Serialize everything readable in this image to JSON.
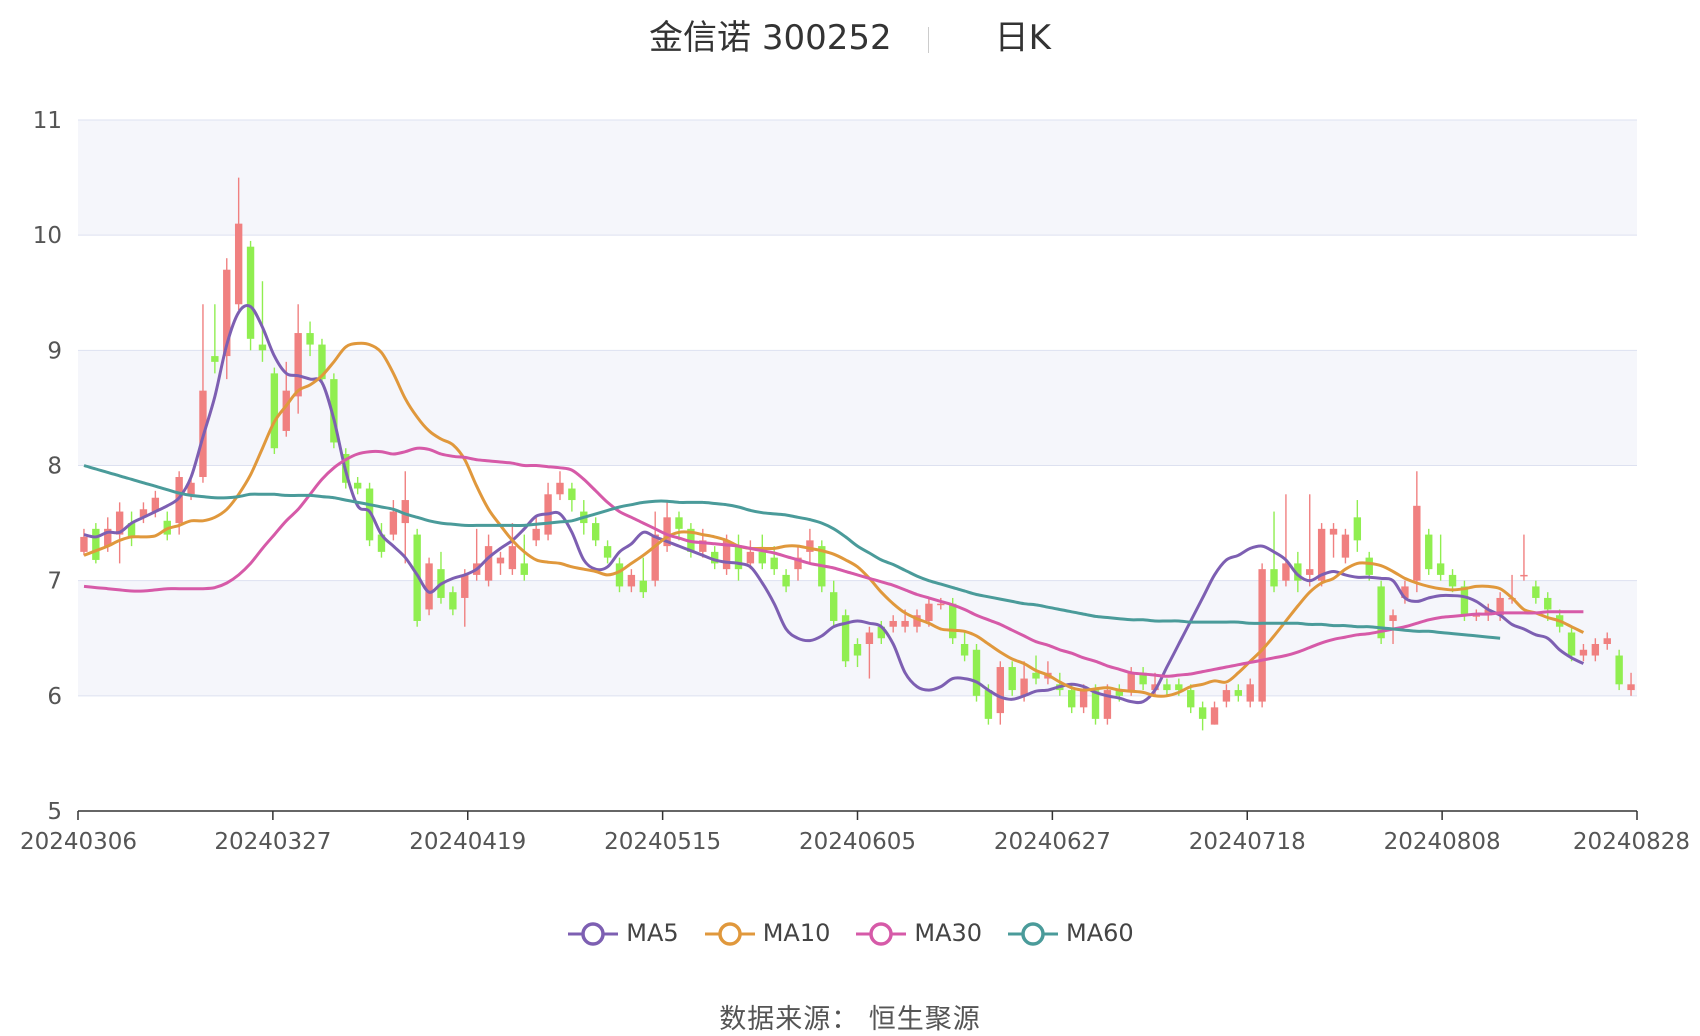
{
  "header": {
    "stock": "金信诺 300252",
    "period": "日K"
  },
  "footer": {
    "source": "数据来源： 恒生聚源"
  },
  "chart_data": {
    "type": "candlestick",
    "ylim": [
      5,
      11
    ],
    "yticks": [
      5,
      6,
      7,
      8,
      9,
      10,
      11
    ],
    "xtick_labels": [
      "20240306",
      "20240327",
      "20240419",
      "20240515",
      "20240605",
      "20240627",
      "20240718",
      "20240808",
      "20240828"
    ],
    "up_color": "#f08080",
    "down_color": "#90ee50",
    "background_bands": [
      "#f5f6fb",
      "#ffffff"
    ],
    "candles": [
      [
        7.25,
        7.38,
        7.22,
        7.45
      ],
      [
        7.45,
        7.18,
        7.15,
        7.5
      ],
      [
        7.3,
        7.45,
        7.25,
        7.55
      ],
      [
        7.4,
        7.6,
        7.15,
        7.68
      ],
      [
        7.5,
        7.38,
        7.3,
        7.6
      ],
      [
        7.55,
        7.62,
        7.5,
        7.68
      ],
      [
        7.6,
        7.72,
        7.55,
        7.78
      ],
      [
        7.52,
        7.4,
        7.35,
        7.6
      ],
      [
        7.5,
        7.9,
        7.4,
        7.95
      ],
      [
        7.75,
        7.85,
        7.7,
        7.9
      ],
      [
        7.9,
        8.65,
        7.85,
        9.4
      ],
      [
        8.95,
        8.9,
        8.8,
        9.4
      ],
      [
        8.95,
        9.7,
        8.75,
        9.8
      ],
      [
        9.4,
        10.1,
        9.35,
        10.5
      ],
      [
        9.9,
        9.1,
        9.0,
        9.95
      ],
      [
        9.05,
        9.0,
        8.9,
        9.6
      ],
      [
        8.8,
        8.15,
        8.1,
        8.85
      ],
      [
        8.3,
        8.65,
        8.25,
        8.9
      ],
      [
        8.6,
        9.15,
        8.45,
        9.4
      ],
      [
        9.15,
        9.05,
        8.95,
        9.25
      ],
      [
        9.05,
        8.75,
        8.7,
        9.1
      ],
      [
        8.75,
        8.2,
        8.15,
        8.8
      ],
      [
        8.1,
        7.85,
        7.8,
        8.15
      ],
      [
        7.85,
        7.8,
        7.75,
        7.9
      ],
      [
        7.8,
        7.35,
        7.3,
        7.85
      ],
      [
        7.4,
        7.25,
        7.2,
        7.5
      ],
      [
        7.4,
        7.6,
        7.35,
        7.7
      ],
      [
        7.5,
        7.7,
        7.15,
        7.95
      ],
      [
        7.4,
        6.65,
        6.6,
        7.45
      ],
      [
        6.75,
        7.15,
        6.7,
        7.2
      ],
      [
        7.1,
        6.85,
        6.8,
        7.25
      ],
      [
        6.9,
        6.75,
        6.7,
        6.95
      ],
      [
        6.85,
        7.05,
        6.6,
        7.1
      ],
      [
        7.05,
        7.15,
        7.0,
        7.45
      ],
      [
        7.0,
        7.3,
        6.95,
        7.4
      ],
      [
        7.15,
        7.2,
        7.05,
        7.25
      ],
      [
        7.1,
        7.3,
        7.05,
        7.5
      ],
      [
        7.15,
        7.05,
        7.0,
        7.4
      ],
      [
        7.35,
        7.45,
        7.3,
        7.55
      ],
      [
        7.4,
        7.75,
        7.35,
        7.85
      ],
      [
        7.75,
        7.85,
        7.7,
        7.95
      ],
      [
        7.8,
        7.7,
        7.6,
        7.85
      ],
      [
        7.6,
        7.5,
        7.4,
        7.7
      ],
      [
        7.5,
        7.35,
        7.3,
        7.55
      ],
      [
        7.3,
        7.2,
        7.15,
        7.35
      ],
      [
        7.15,
        6.95,
        6.9,
        7.2
      ],
      [
        6.95,
        7.05,
        6.9,
        7.1
      ],
      [
        7.0,
        6.9,
        6.85,
        7.2
      ],
      [
        7.0,
        7.4,
        6.95,
        7.6
      ],
      [
        7.3,
        7.55,
        7.25,
        7.7
      ],
      [
        7.55,
        7.45,
        7.35,
        7.6
      ],
      [
        7.45,
        7.25,
        7.2,
        7.5
      ],
      [
        7.25,
        7.35,
        7.2,
        7.45
      ],
      [
        7.25,
        7.15,
        7.1,
        7.3
      ],
      [
        7.1,
        7.35,
        7.05,
        7.4
      ],
      [
        7.3,
        7.1,
        7.0,
        7.4
      ],
      [
        7.15,
        7.25,
        7.1,
        7.35
      ],
      [
        7.25,
        7.15,
        7.1,
        7.4
      ],
      [
        7.2,
        7.1,
        7.05,
        7.3
      ],
      [
        7.05,
        6.95,
        6.9,
        7.1
      ],
      [
        7.1,
        7.2,
        7.0,
        7.3
      ],
      [
        7.25,
        7.35,
        7.15,
        7.45
      ],
      [
        7.3,
        6.95,
        6.9,
        7.35
      ],
      [
        6.9,
        6.65,
        6.6,
        7.0
      ],
      [
        6.7,
        6.3,
        6.25,
        6.75
      ],
      [
        6.45,
        6.35,
        6.25,
        6.5
      ],
      [
        6.45,
        6.55,
        6.15,
        6.6
      ],
      [
        6.6,
        6.5,
        6.45,
        6.65
      ],
      [
        6.6,
        6.65,
        6.55,
        6.7
      ],
      [
        6.6,
        6.65,
        6.55,
        6.75
      ],
      [
        6.6,
        6.7,
        6.55,
        6.75
      ],
      [
        6.65,
        6.8,
        6.6,
        6.85
      ],
      [
        6.8,
        6.8,
        6.75,
        6.85
      ],
      [
        6.8,
        6.5,
        6.45,
        6.85
      ],
      [
        6.45,
        6.35,
        6.3,
        6.55
      ],
      [
        6.4,
        6.0,
        5.95,
        6.45
      ],
      [
        6.05,
        5.8,
        5.75,
        6.1
      ],
      [
        5.85,
        6.25,
        5.75,
        6.3
      ],
      [
        6.25,
        6.05,
        6.0,
        6.3
      ],
      [
        6.0,
        6.15,
        5.95,
        6.3
      ],
      [
        6.2,
        6.15,
        6.1,
        6.35
      ],
      [
        6.15,
        6.2,
        6.1,
        6.3
      ],
      [
        6.1,
        6.05,
        6.0,
        6.2
      ],
      [
        6.05,
        5.9,
        5.85,
        6.1
      ],
      [
        5.9,
        6.05,
        5.85,
        6.1
      ],
      [
        6.05,
        5.8,
        5.75,
        6.1
      ],
      [
        5.8,
        6.05,
        5.75,
        6.1
      ],
      [
        6.05,
        6.0,
        5.95,
        6.1
      ],
      [
        6.05,
        6.2,
        6.0,
        6.25
      ],
      [
        6.2,
        6.1,
        6.05,
        6.25
      ],
      [
        6.05,
        6.1,
        6.0,
        6.2
      ],
      [
        6.1,
        6.05,
        6.0,
        6.15
      ],
      [
        6.1,
        6.05,
        6.0,
        6.15
      ],
      [
        6.05,
        5.9,
        5.85,
        6.1
      ],
      [
        5.9,
        5.8,
        5.7,
        5.95
      ],
      [
        5.75,
        5.9,
        5.75,
        5.95
      ],
      [
        5.95,
        6.05,
        5.9,
        6.1
      ],
      [
        6.05,
        6.0,
        5.95,
        6.1
      ],
      [
        5.95,
        6.1,
        5.9,
        6.15
      ],
      [
        5.95,
        7.1,
        5.9,
        7.15
      ],
      [
        7.1,
        6.95,
        6.9,
        7.6
      ],
      [
        7.0,
        7.15,
        6.95,
        7.75
      ],
      [
        7.15,
        7.0,
        6.9,
        7.25
      ],
      [
        7.05,
        7.1,
        6.95,
        7.75
      ],
      [
        7.0,
        7.45,
        6.95,
        7.5
      ],
      [
        7.4,
        7.45,
        7.2,
        7.5
      ],
      [
        7.2,
        7.4,
        7.15,
        7.45
      ],
      [
        7.55,
        7.35,
        7.25,
        7.7
      ],
      [
        7.2,
        7.05,
        7.0,
        7.25
      ],
      [
        6.95,
        6.5,
        6.45,
        7.0
      ],
      [
        6.65,
        6.7,
        6.45,
        6.75
      ],
      [
        6.85,
        6.95,
        6.8,
        7.0
      ],
      [
        7.0,
        7.65,
        6.9,
        7.95
      ],
      [
        7.4,
        7.1,
        7.05,
        7.45
      ],
      [
        7.15,
        7.05,
        7.0,
        7.4
      ],
      [
        7.05,
        6.95,
        6.9,
        7.1
      ],
      [
        6.95,
        6.7,
        6.65,
        7.0
      ],
      [
        6.7,
        6.7,
        6.65,
        6.75
      ],
      [
        6.7,
        6.75,
        6.65,
        6.8
      ],
      [
        6.7,
        6.85,
        6.65,
        6.9
      ],
      [
        6.85,
        6.85,
        6.8,
        7.05
      ],
      [
        7.05,
        7.05,
        7.0,
        7.4
      ],
      [
        6.95,
        6.85,
        6.8,
        7.0
      ],
      [
        6.85,
        6.75,
        6.65,
        6.9
      ],
      [
        6.7,
        6.6,
        6.55,
        6.75
      ],
      [
        6.55,
        6.35,
        6.3,
        6.6
      ],
      [
        6.35,
        6.4,
        6.3,
        6.45
      ],
      [
        6.35,
        6.45,
        6.3,
        6.5
      ],
      [
        6.45,
        6.5,
        6.4,
        6.55
      ],
      [
        6.35,
        6.1,
        6.05,
        6.4
      ],
      [
        6.05,
        6.1,
        6.0,
        6.2
      ]
    ],
    "series": [
      {
        "name": "MA5",
        "color": "#7d5fb2",
        "values": [
          7.4,
          7.38,
          7.42,
          7.42,
          7.5,
          7.55,
          7.6,
          7.65,
          7.72,
          7.9,
          8.25,
          8.6,
          9.05,
          9.33,
          9.38,
          9.2,
          8.95,
          8.8,
          8.78,
          8.75,
          8.72,
          8.4,
          7.95,
          7.65,
          7.6,
          7.4,
          7.3,
          7.2,
          7.05,
          6.9,
          6.97,
          7.02,
          7.05,
          7.1,
          7.2,
          7.28,
          7.35,
          7.45,
          7.56,
          7.58,
          7.58,
          7.42,
          7.18,
          7.1,
          7.12,
          7.25,
          7.32,
          7.42,
          7.38,
          7.34,
          7.3,
          7.26,
          7.22,
          7.18,
          7.16,
          7.15,
          7.12,
          6.98,
          6.8,
          6.58,
          6.5,
          6.48,
          6.52,
          6.6,
          6.63,
          6.65,
          6.63,
          6.6,
          6.45,
          6.2,
          6.08,
          6.05,
          6.08,
          6.15,
          6.15,
          6.12,
          6.05,
          5.99,
          5.97,
          6.0,
          6.04,
          6.05,
          6.08,
          6.1,
          6.08,
          6.03,
          6.0,
          5.98,
          5.95,
          5.95,
          6.05,
          6.25,
          6.45,
          6.65,
          6.85,
          7.05,
          7.18,
          7.22,
          7.28,
          7.3,
          7.25,
          7.18,
          7.05,
          7.0,
          7.05,
          7.08,
          7.05,
          7.03,
          7.03,
          7.02,
          7.0,
          6.85,
          6.82,
          6.85,
          6.87,
          6.87,
          6.86,
          6.82,
          6.75,
          6.7,
          6.62,
          6.58,
          6.53,
          6.5,
          6.4,
          6.33,
          6.28
        ]
      },
      {
        "name": "MA10",
        "color": "#e0983c",
        "values": [
          7.22,
          7.26,
          7.3,
          7.35,
          7.38,
          7.38,
          7.39,
          7.45,
          7.48,
          7.52,
          7.52,
          7.55,
          7.62,
          7.75,
          7.92,
          8.15,
          8.38,
          8.52,
          8.65,
          8.7,
          8.78,
          8.9,
          9.03,
          9.06,
          9.05,
          8.98,
          8.8,
          8.58,
          8.42,
          8.3,
          8.23,
          8.18,
          8.05,
          7.82,
          7.62,
          7.48,
          7.35,
          7.25,
          7.18,
          7.16,
          7.15,
          7.12,
          7.1,
          7.08,
          7.05,
          7.08,
          7.15,
          7.22,
          7.3,
          7.38,
          7.42,
          7.42,
          7.4,
          7.38,
          7.35,
          7.3,
          7.28,
          7.28,
          7.28,
          7.3,
          7.3,
          7.28,
          7.26,
          7.23,
          7.18,
          7.12,
          7.02,
          6.9,
          6.8,
          6.72,
          6.67,
          6.63,
          6.58,
          6.57,
          6.56,
          6.52,
          6.45,
          6.38,
          6.32,
          6.28,
          6.22,
          6.18,
          6.12,
          6.07,
          6.05,
          6.06,
          6.07,
          6.05,
          6.04,
          6.03,
          6.0,
          6.0,
          6.03,
          6.08,
          6.1,
          6.13,
          6.12,
          6.2,
          6.3,
          6.4,
          6.52,
          6.65,
          6.78,
          6.9,
          6.98,
          7.02,
          7.1,
          7.15,
          7.15,
          7.13,
          7.08,
          7.02,
          6.98,
          6.95,
          6.93,
          6.92,
          6.93,
          6.95,
          6.95,
          6.93,
          6.85,
          6.75,
          6.72,
          6.68,
          6.65,
          6.6,
          6.55
        ]
      },
      {
        "name": "MA30",
        "color": "#d65aa8",
        "values": [
          6.95,
          6.94,
          6.93,
          6.92,
          6.91,
          6.91,
          6.92,
          6.93,
          6.93,
          6.93,
          6.93,
          6.94,
          6.98,
          7.05,
          7.15,
          7.28,
          7.4,
          7.52,
          7.62,
          7.75,
          7.88,
          7.98,
          8.05,
          8.1,
          8.12,
          8.12,
          8.1,
          8.12,
          8.15,
          8.14,
          8.1,
          8.08,
          8.07,
          8.05,
          8.04,
          8.03,
          8.02,
          8.0,
          8.0,
          7.99,
          7.98,
          7.96,
          7.88,
          7.78,
          7.68,
          7.6,
          7.55,
          7.5,
          7.45,
          7.4,
          7.37,
          7.34,
          7.33,
          7.32,
          7.31,
          7.3,
          7.28,
          7.26,
          7.24,
          7.21,
          7.18,
          7.15,
          7.13,
          7.11,
          7.08,
          7.05,
          7.02,
          6.99,
          6.96,
          6.92,
          6.88,
          6.85,
          6.82,
          6.79,
          6.75,
          6.7,
          6.66,
          6.62,
          6.57,
          6.52,
          6.47,
          6.44,
          6.4,
          6.37,
          6.33,
          6.3,
          6.26,
          6.23,
          6.2,
          6.19,
          6.18,
          6.17,
          6.18,
          6.19,
          6.21,
          6.23,
          6.25,
          6.27,
          6.29,
          6.31,
          6.33,
          6.35,
          6.38,
          6.42,
          6.46,
          6.49,
          6.51,
          6.53,
          6.54,
          6.56,
          6.58,
          6.6,
          6.63,
          6.66,
          6.68,
          6.69,
          6.7,
          6.71,
          6.71,
          6.72,
          6.72,
          6.72,
          6.72,
          6.73,
          6.73,
          6.73,
          6.73
        ]
      },
      {
        "name": "MA60",
        "color": "#4a9b9a",
        "values": [
          8.0,
          7.97,
          7.94,
          7.91,
          7.88,
          7.85,
          7.82,
          7.79,
          7.76,
          7.74,
          7.73,
          7.72,
          7.72,
          7.73,
          7.75,
          7.75,
          7.75,
          7.74,
          7.74,
          7.74,
          7.73,
          7.72,
          7.7,
          7.68,
          7.66,
          7.64,
          7.62,
          7.58,
          7.55,
          7.52,
          7.5,
          7.49,
          7.48,
          7.48,
          7.48,
          7.48,
          7.48,
          7.48,
          7.49,
          7.5,
          7.51,
          7.52,
          7.55,
          7.58,
          7.61,
          7.64,
          7.66,
          7.68,
          7.69,
          7.69,
          7.68,
          7.68,
          7.68,
          7.67,
          7.66,
          7.64,
          7.61,
          7.59,
          7.58,
          7.57,
          7.55,
          7.53,
          7.5,
          7.45,
          7.38,
          7.3,
          7.24,
          7.18,
          7.14,
          7.09,
          7.04,
          7.0,
          6.97,
          6.94,
          6.91,
          6.88,
          6.86,
          6.84,
          6.82,
          6.8,
          6.79,
          6.77,
          6.75,
          6.73,
          6.71,
          6.69,
          6.68,
          6.67,
          6.66,
          6.66,
          6.65,
          6.65,
          6.65,
          6.64,
          6.64,
          6.64,
          6.64,
          6.64,
          6.63,
          6.63,
          6.63,
          6.63,
          6.63,
          6.62,
          6.62,
          6.61,
          6.61,
          6.6,
          6.6,
          6.59,
          6.58,
          6.57,
          6.56,
          6.56,
          6.55,
          6.54,
          6.53,
          6.52,
          6.51,
          6.5
        ]
      }
    ]
  }
}
